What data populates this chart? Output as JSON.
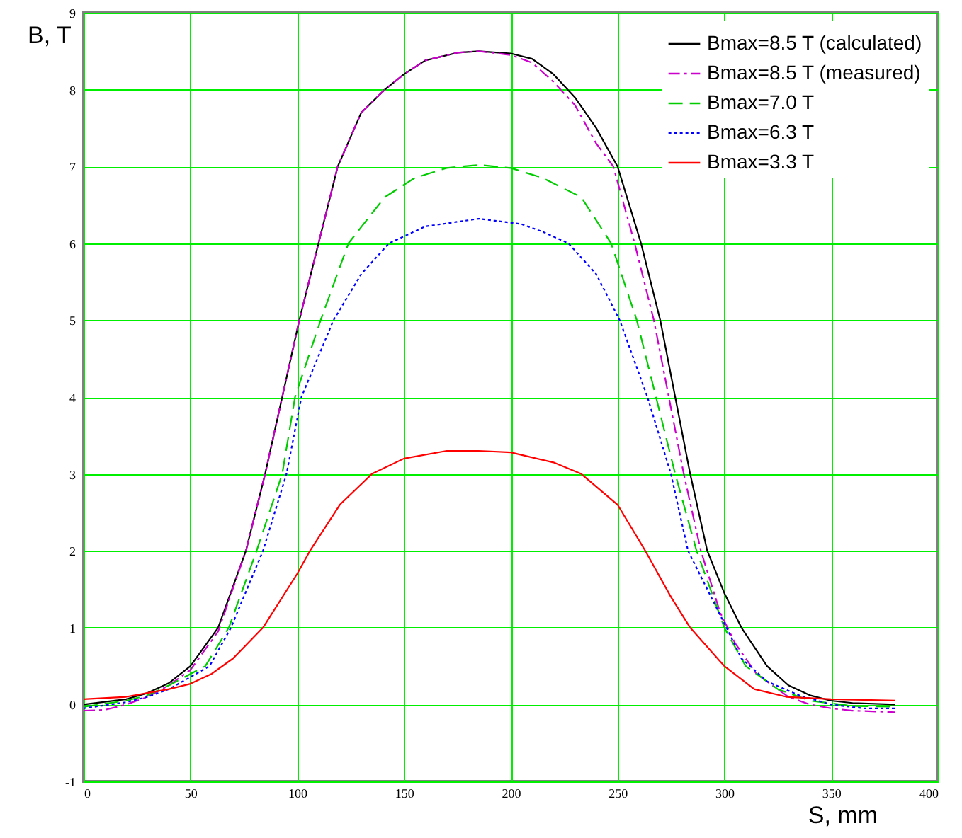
{
  "chart_data": {
    "type": "line",
    "xlabel": "S, mm",
    "ylabel": "B, T",
    "xlim": [
      0,
      400
    ],
    "ylim": [
      -1,
      9
    ],
    "xticks": [
      0,
      50,
      100,
      150,
      200,
      250,
      300,
      350,
      400
    ],
    "yticks": [
      -1,
      0,
      1,
      2,
      3,
      4,
      5,
      6,
      7,
      8,
      9
    ],
    "grid": true,
    "legend": "top right",
    "marker": "none",
    "series": [
      {
        "name": "Bmax=8.5 T (calculated)",
        "color": "#000000",
        "line_style": "solid",
        "x": [
          0,
          20,
          30,
          40,
          50,
          63,
          76,
          85,
          93,
          101,
          110,
          119,
          130,
          141,
          150,
          160,
          175,
          185,
          200,
          210,
          220,
          230,
          240,
          250,
          261,
          270,
          277,
          284,
          292,
          300,
          308,
          320,
          330,
          340,
          350,
          360,
          380
        ],
        "values": [
          0.0,
          0.07,
          0.15,
          0.28,
          0.5,
          1.0,
          2.0,
          3.0,
          4.0,
          5.0,
          6.0,
          7.0,
          7.7,
          8.0,
          8.2,
          8.38,
          8.48,
          8.5,
          8.47,
          8.4,
          8.2,
          7.9,
          7.5,
          7.0,
          6.0,
          5.0,
          4.0,
          3.0,
          2.0,
          1.45,
          1.0,
          0.5,
          0.25,
          0.12,
          0.05,
          0.02,
          0.0
        ]
      },
      {
        "name": "Bmax=8.5 T (measured)",
        "color": "#cc00cc",
        "line_style": "dashdot",
        "x": [
          0,
          10,
          20,
          30,
          40,
          50,
          63,
          76,
          85,
          93,
          101,
          110,
          119,
          130,
          141,
          150,
          160,
          175,
          185,
          200,
          210,
          220,
          230,
          240,
          248,
          258,
          267,
          274,
          281,
          289,
          298,
          305,
          315,
          330,
          340,
          350,
          360,
          380
        ],
        "values": [
          -0.08,
          -0.07,
          0.0,
          0.1,
          0.25,
          0.45,
          0.95,
          2.0,
          3.0,
          4.0,
          5.0,
          6.0,
          7.0,
          7.7,
          8.0,
          8.2,
          8.38,
          8.48,
          8.5,
          8.45,
          8.35,
          8.1,
          7.8,
          7.3,
          7.0,
          6.0,
          5.0,
          4.0,
          3.0,
          2.0,
          1.2,
          0.8,
          0.4,
          0.1,
          0.0,
          -0.05,
          -0.08,
          -0.1
        ]
      },
      {
        "name": "Bmax=7.0 T",
        "color": "#00cc00",
        "line_style": "dashed",
        "x": [
          0,
          20,
          30,
          40,
          57,
          68,
          81,
          93,
          99,
          111,
          124,
          141,
          155,
          170,
          185,
          200,
          215,
          233,
          247,
          259,
          268,
          277,
          287,
          300,
          310,
          325,
          340,
          360,
          380
        ],
        "values": [
          -0.03,
          0.05,
          0.12,
          0.25,
          0.5,
          1.0,
          2.0,
          3.0,
          4.0,
          5.0,
          6.0,
          6.6,
          6.85,
          6.98,
          7.02,
          6.98,
          6.85,
          6.6,
          6.0,
          5.0,
          4.0,
          3.0,
          2.0,
          1.0,
          0.5,
          0.2,
          0.05,
          -0.02,
          -0.03
        ]
      },
      {
        "name": "Bmax=6.3 T",
        "color": "#0000ff",
        "line_style": "dotted",
        "x": [
          0,
          20,
          30,
          40,
          59,
          69,
          84,
          95,
          102,
          117,
          130,
          143,
          160,
          185,
          205,
          215,
          227,
          240,
          251,
          264,
          275,
          283,
          301,
          308,
          320,
          335,
          350,
          365,
          380
        ],
        "values": [
          -0.05,
          0.03,
          0.1,
          0.2,
          0.5,
          1.0,
          2.0,
          3.0,
          4.0,
          5.0,
          5.6,
          6.0,
          6.22,
          6.32,
          6.25,
          6.15,
          6.0,
          5.6,
          5.0,
          4.0,
          3.0,
          2.0,
          1.0,
          0.6,
          0.3,
          0.12,
          0.0,
          -0.05,
          -0.05
        ]
      },
      {
        "name": "Bmax=3.3 T",
        "color": "#ff0000",
        "line_style": "solid",
        "x": [
          0,
          20,
          30,
          40,
          50,
          60,
          70,
          84,
          100,
          106,
          120,
          135,
          150,
          170,
          185,
          200,
          220,
          233,
          250,
          263,
          275,
          284,
          300,
          314,
          329,
          350,
          380
        ],
        "values": [
          0.07,
          0.1,
          0.15,
          0.2,
          0.27,
          0.4,
          0.6,
          1.0,
          1.7,
          2.0,
          2.6,
          3.0,
          3.2,
          3.3,
          3.3,
          3.28,
          3.15,
          3.0,
          2.6,
          2.0,
          1.4,
          1.0,
          0.5,
          0.2,
          0.1,
          0.07,
          0.05
        ]
      }
    ]
  }
}
